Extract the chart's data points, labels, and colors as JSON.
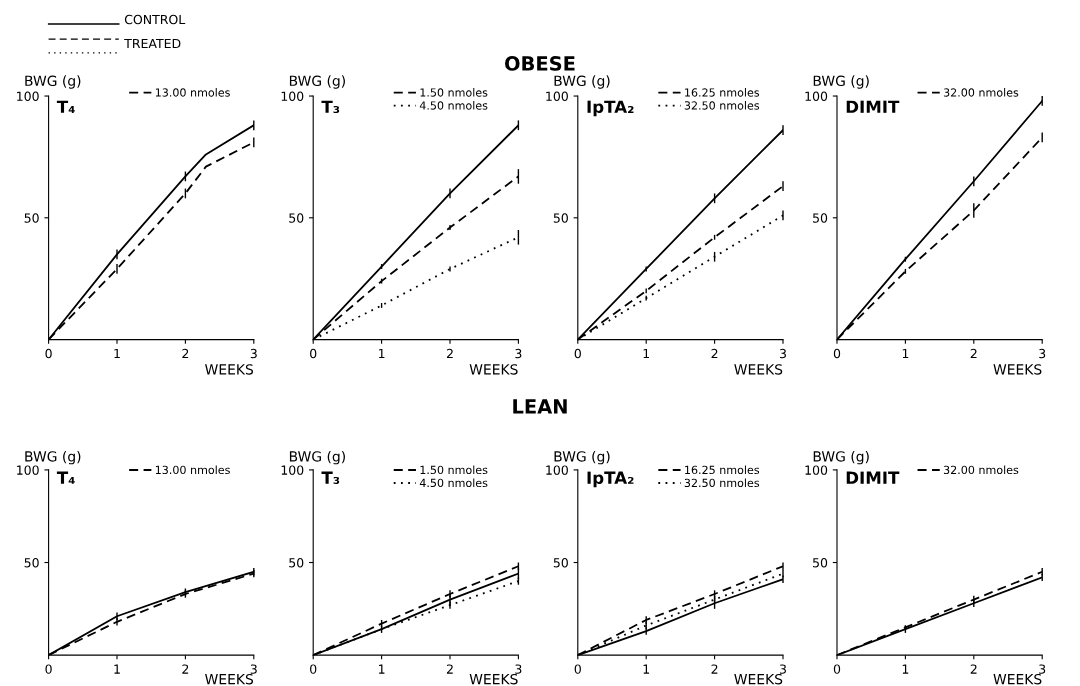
{
  "chart_data": [
    {
      "type": "line",
      "title": "T₄",
      "xlabel": "WEEKS",
      "ylabel": "BWG (g)",
      "x": [
        0,
        1,
        2,
        2.3,
        3
      ],
      "xlim": [
        0,
        3
      ],
      "xticks": [
        0,
        1,
        2,
        3
      ],
      "ylim": [
        0,
        100
      ],
      "yticks": [
        50,
        100
      ],
      "legend": "top",
      "marker": "none",
      "grid": false,
      "annotations": [
        "CONTROL",
        "TREATED",
        "OBESE"
      ],
      "series": [
        {
          "color": "#000000",
          "line_style": "solid",
          "values": [
            0,
            35,
            67,
            76,
            88
          ],
          "errors": [
            null,
            2,
            2,
            null,
            2
          ]
        },
        {
          "name": "13.00 nmoles",
          "color": "#000000",
          "line_style": "dashed",
          "values": [
            0,
            29,
            60,
            71,
            81
          ],
          "errors": [
            null,
            2,
            2,
            null,
            2
          ]
        },
        {
          "color": "#000000",
          "line_style": "dotted",
          "values": [
            null,
            null,
            null,
            null,
            null
          ]
        }
      ]
    },
    {
      "type": "line",
      "title": "T₃",
      "xlabel": "WEEKS",
      "ylabel": "BWG (g)",
      "x": [
        0,
        1,
        2,
        3
      ],
      "xlim": [
        0,
        3
      ],
      "xticks": [
        0,
        1,
        2,
        3
      ],
      "ylim": [
        0,
        100
      ],
      "yticks": [
        50,
        100
      ],
      "legend": "top",
      "marker": "none",
      "grid": false,
      "series": [
        {
          "color": "#000000",
          "line_style": "solid",
          "values": [
            0,
            30,
            60,
            88
          ],
          "errors": [
            null,
            1,
            2,
            2
          ]
        },
        {
          "name": "1.50 nmoles",
          "color": "#000000",
          "line_style": "dashed",
          "values": [
            0,
            24,
            46,
            67
          ],
          "errors": [
            null,
            1,
            1,
            3
          ]
        },
        {
          "name": "4.50 nmoles",
          "color": "#000000",
          "line_style": "dotted",
          "values": [
            0,
            14,
            29,
            42
          ],
          "errors": [
            null,
            1,
            1,
            3
          ]
        }
      ]
    },
    {
      "type": "line",
      "title": "IpTA₂",
      "xlabel": "WEEKS",
      "ylabel": "BWG (g)",
      "x": [
        0,
        1,
        2,
        3
      ],
      "xlim": [
        0,
        3
      ],
      "xticks": [
        0,
        1,
        2,
        3
      ],
      "ylim": [
        0,
        100
      ],
      "yticks": [
        50,
        100
      ],
      "legend": "top",
      "marker": "none",
      "grid": false,
      "series": [
        {
          "color": "#000000",
          "line_style": "solid",
          "values": [
            0,
            29,
            58,
            86
          ],
          "errors": [
            null,
            1,
            2,
            2
          ]
        },
        {
          "name": "16.25 nmoles",
          "color": "#000000",
          "line_style": "dashed",
          "values": [
            0,
            20,
            42,
            63
          ],
          "errors": [
            null,
            1,
            1,
            2
          ]
        },
        {
          "name": "32.50 nmoles",
          "color": "#000000",
          "line_style": "dotted",
          "values": [
            0,
            17,
            34,
            51
          ],
          "errors": [
            null,
            1,
            2,
            2
          ]
        }
      ]
    },
    {
      "type": "line",
      "title": "DIMIT",
      "xlabel": "WEEKS",
      "ylabel": "BWG (g)",
      "x": [
        0,
        1,
        2,
        3
      ],
      "xlim": [
        0,
        3
      ],
      "xticks": [
        0,
        1,
        2,
        3
      ],
      "ylim": [
        0,
        100
      ],
      "yticks": [
        50,
        100
      ],
      "legend": "top",
      "marker": "none",
      "grid": false,
      "series": [
        {
          "color": "#000000",
          "line_style": "solid",
          "values": [
            0,
            33,
            65,
            98
          ],
          "errors": [
            null,
            1,
            2,
            2
          ]
        },
        {
          "name": "32.00 nmoles",
          "color": "#000000",
          "line_style": "dashed",
          "values": [
            0,
            28,
            53,
            83
          ],
          "errors": [
            null,
            1,
            3,
            2
          ]
        }
      ]
    },
    {
      "type": "line",
      "title": "T₄",
      "xlabel": "WEEKS",
      "ylabel": "BWG (g)",
      "x": [
        0,
        1,
        2,
        3
      ],
      "xlim": [
        0,
        3
      ],
      "xticks": [
        0,
        1,
        2,
        3
      ],
      "ylim": [
        0,
        100
      ],
      "yticks": [
        50,
        100
      ],
      "legend": "top",
      "marker": "none",
      "grid": false,
      "annotations": [
        "LEAN"
      ],
      "series": [
        {
          "color": "#000000",
          "line_style": "solid",
          "values": [
            0,
            21,
            34,
            45
          ],
          "errors": [
            null,
            2,
            2,
            2
          ]
        },
        {
          "name": "13.00 nmoles",
          "color": "#000000",
          "line_style": "dashed",
          "values": [
            0,
            18,
            33,
            44
          ],
          "errors": [
            null,
            2,
            2,
            2
          ]
        }
      ]
    },
    {
      "type": "line",
      "title": "T₃",
      "xlabel": "WEEKS",
      "ylabel": "BWG (g)",
      "x": [
        0,
        1,
        2,
        3
      ],
      "xlim": [
        0,
        3
      ],
      "xticks": [
        0,
        1,
        2,
        3
      ],
      "ylim": [
        0,
        100
      ],
      "yticks": [
        50,
        100
      ],
      "legend": "top",
      "marker": "none",
      "grid": false,
      "series": [
        {
          "color": "#000000",
          "line_style": "solid",
          "values": [
            0,
            14,
            30,
            44
          ],
          "errors": [
            null,
            2,
            3,
            3
          ]
        },
        {
          "name": "1.50 nmoles",
          "color": "#000000",
          "line_style": "dashed",
          "values": [
            0,
            17,
            33,
            48
          ],
          "errors": [
            null,
            2,
            2,
            2
          ]
        },
        {
          "name": "4.50 nmoles",
          "color": "#000000",
          "line_style": "dotted",
          "values": [
            0,
            14,
            27,
            40
          ],
          "errors": [
            null,
            null,
            2,
            2
          ]
        }
      ]
    },
    {
      "type": "line",
      "title": "IpTA₂",
      "xlabel": "WEEKS",
      "ylabel": "BWG (g)",
      "x": [
        0,
        1,
        2,
        3
      ],
      "xlim": [
        0,
        3
      ],
      "xticks": [
        0,
        1,
        2,
        3
      ],
      "ylim": [
        0,
        100
      ],
      "yticks": [
        50,
        100
      ],
      "legend": "top",
      "marker": "none",
      "grid": false,
      "series": [
        {
          "color": "#000000",
          "line_style": "solid",
          "values": [
            0,
            13,
            28,
            41
          ],
          "errors": [
            null,
            2,
            3,
            2
          ]
        },
        {
          "name": "16.25 nmoles",
          "color": "#000000",
          "line_style": "dashed",
          "values": [
            0,
            19,
            33,
            48
          ],
          "errors": [
            null,
            2,
            2,
            2
          ]
        },
        {
          "name": "32.50 nmoles",
          "color": "#000000",
          "line_style": "dotted",
          "values": [
            0,
            16,
            30,
            44
          ],
          "errors": [
            null,
            2,
            2,
            2
          ]
        }
      ]
    },
    {
      "type": "line",
      "title": "DIMIT",
      "xlabel": "WEEKS",
      "ylabel": "BWG (g)",
      "x": [
        0,
        1,
        2,
        3
      ],
      "xlim": [
        0,
        3
      ],
      "xticks": [
        0,
        1,
        2,
        3
      ],
      "ylim": [
        0,
        100
      ],
      "yticks": [
        50,
        100
      ],
      "legend": "top",
      "marker": "none",
      "grid": false,
      "series": [
        {
          "color": "#000000",
          "line_style": "solid",
          "values": [
            0,
            14,
            28,
            42
          ],
          "errors": [
            null,
            2,
            2,
            2
          ]
        },
        {
          "name": "32.00 nmoles",
          "color": "#000000",
          "line_style": "dashed",
          "values": [
            0,
            15,
            30,
            45
          ],
          "errors": [
            null,
            1,
            2,
            2
          ]
        }
      ]
    }
  ]
}
